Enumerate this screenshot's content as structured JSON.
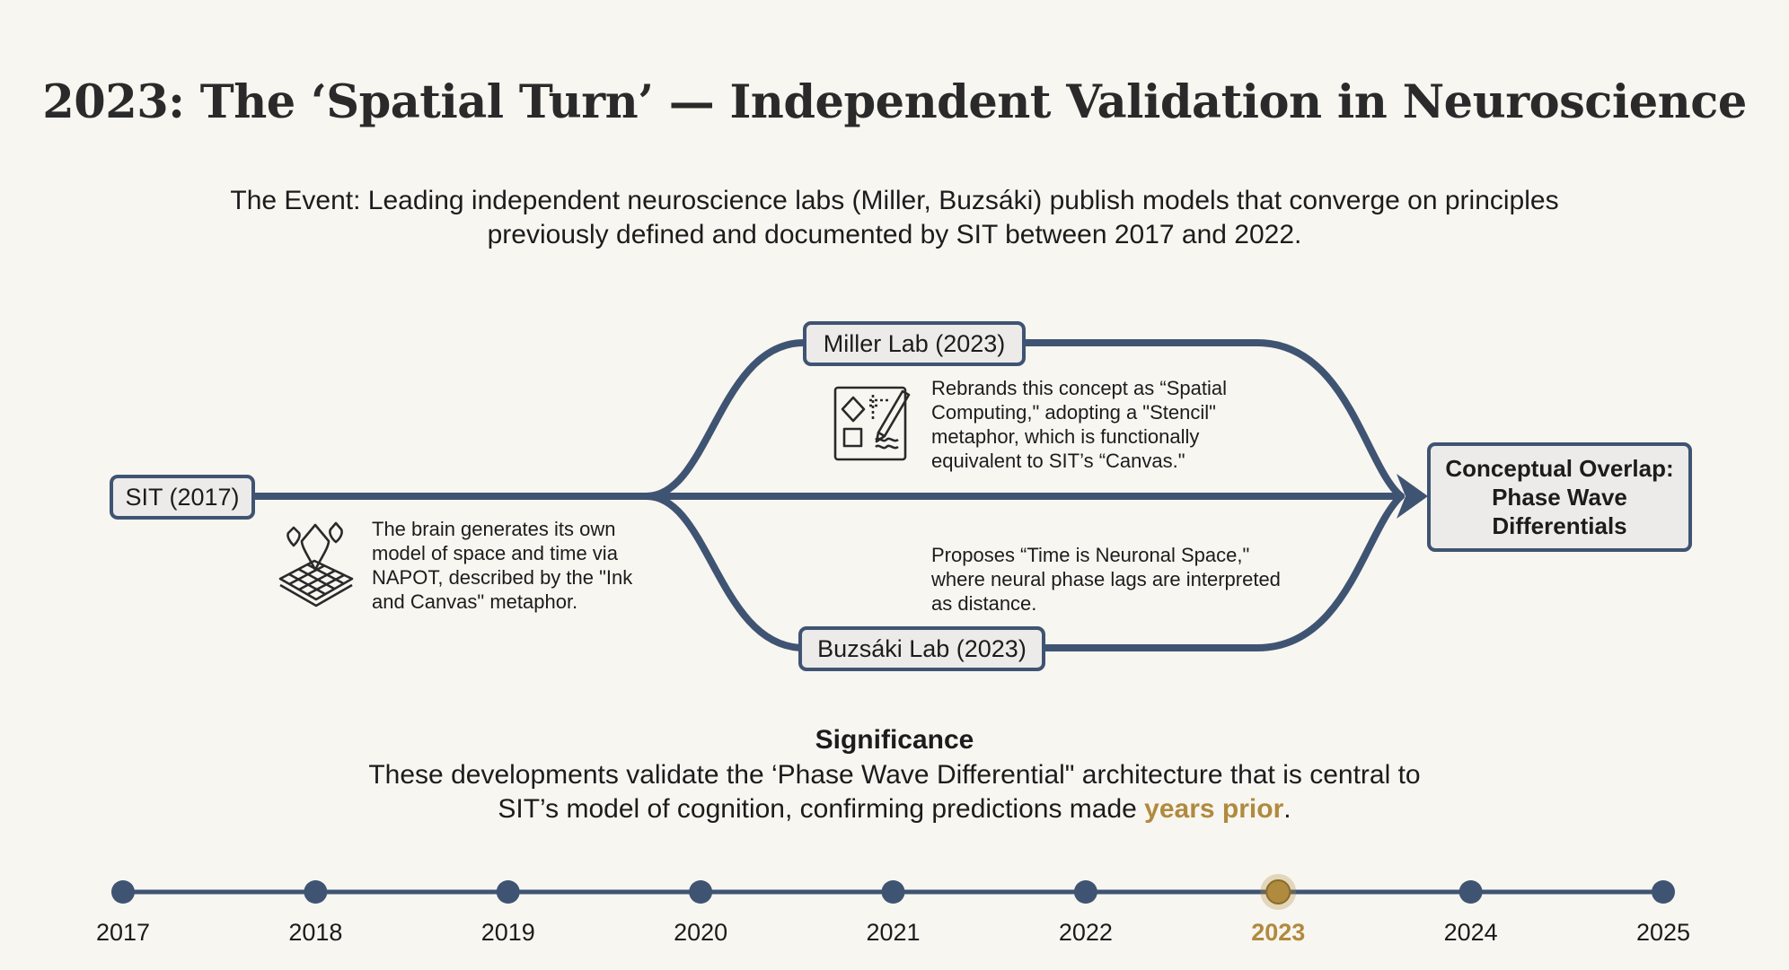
{
  "title": "2023: The ‘Spatial Turn’ — Independent Validation in Neuroscience",
  "event_text": "The Event: Leading independent neuroscience labs (Miller, Buzsáki) publish models that converge on principles previously defined and documented by SIT between 2017 and 2022.",
  "diagram": {
    "source_node": "SIT (2017)",
    "source_desc": "The brain generates its own model of space and time via NAPOT, described by the \"Ink and Canvas\" metaphor.",
    "source_icon": "ink-drops-canvas-icon",
    "miller_node": "Miller Lab (2023)",
    "miller_desc": "Rebrands this concept as “Spatial Computing,\" adopting a \"Stencil\" metaphor, which is functionally equivalent to SIT’s “Canvas.\"",
    "miller_icon": "stencil-icon",
    "buzsaki_node": "Buzsáki Lab (2023)",
    "buzsaki_desc": "Proposes “Time is Neuronal Space,\" where neural phase lags are interpreted as distance.",
    "result_line1": "Conceptual Overlap:",
    "result_line2": "Phase Wave",
    "result_line3": "Differentials"
  },
  "significance": {
    "heading": "Significance",
    "body_before": "These developments validate the ‘Phase Wave Differential\" architecture that is central to SIT’s model of cognition, confirming predictions made ",
    "body_highlight": "years prior",
    "body_after": "."
  },
  "timeline": {
    "years": [
      "2017",
      "2018",
      "2019",
      "2020",
      "2021",
      "2022",
      "2023",
      "2024",
      "2025"
    ],
    "active_year": "2023"
  },
  "colors": {
    "line": "#3f5472",
    "accent": "#b08a3e",
    "background": "#f8f6f1"
  }
}
